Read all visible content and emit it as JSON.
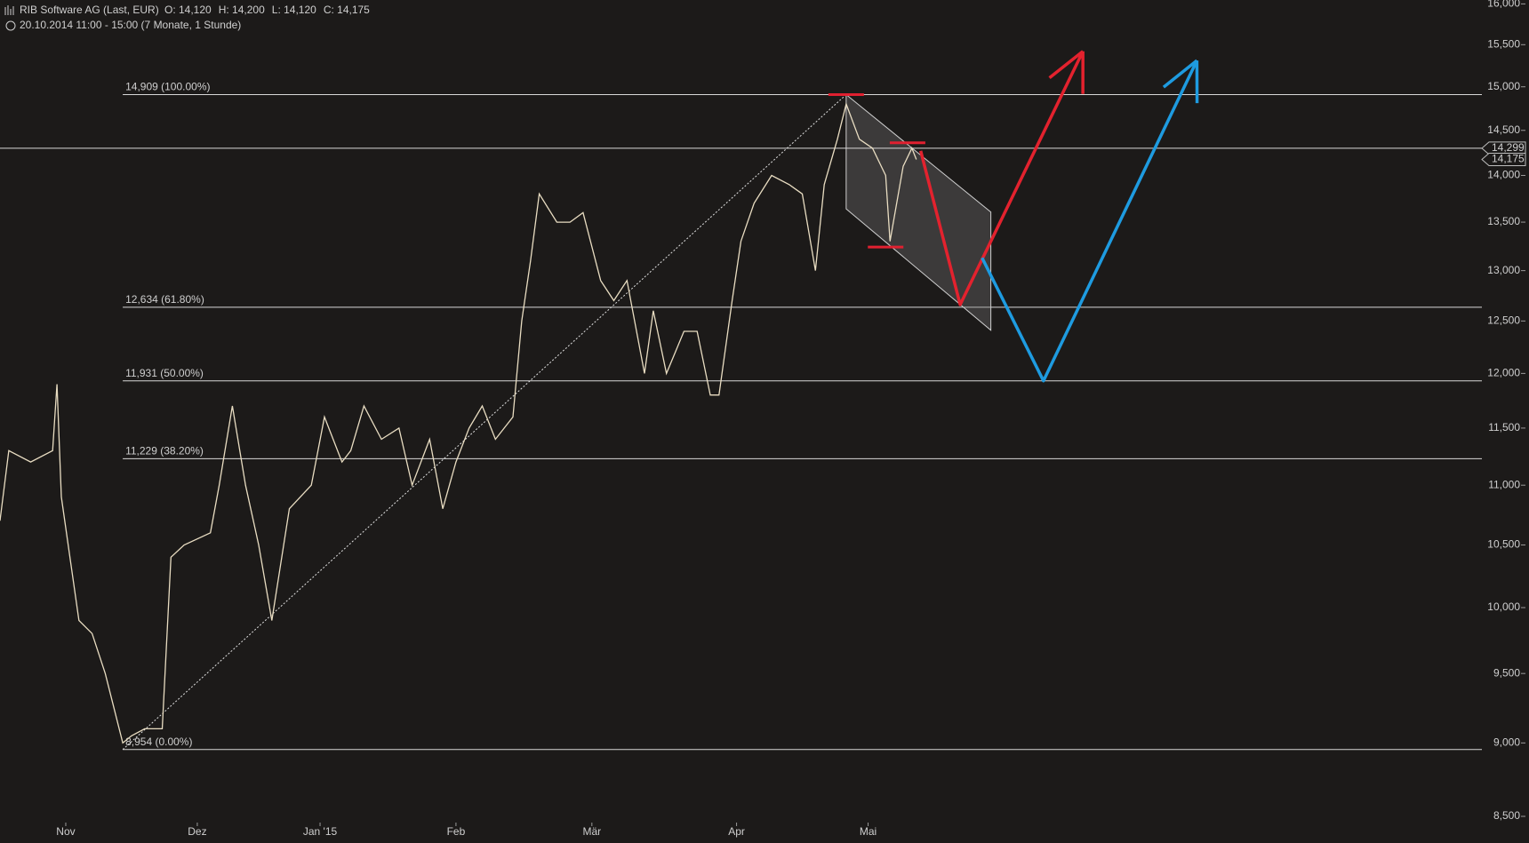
{
  "chart_data": {
    "type": "line",
    "title": "RIB Software AG (Last, EUR)",
    "ohlc": [
      "O: 14,120",
      "H: 14,200",
      "L: 14,120",
      "C: 14,175"
    ],
    "subtitle": "20.10.2014 11:00 - 15:00 (7 Monate, 1 Stunde)",
    "color": "#e9ddc2",
    "log_scale": true,
    "xlim": [
      0,
      338
    ],
    "xticks": [
      {
        "value": 15,
        "label": "Nov"
      },
      {
        "value": 45,
        "label": "Dez"
      },
      {
        "value": 73,
        "label": "Jan '15"
      },
      {
        "value": 104,
        "label": "Feb"
      },
      {
        "value": 135,
        "label": "Mär"
      },
      {
        "value": 168,
        "label": "Apr"
      },
      {
        "value": 198,
        "label": "Mai"
      }
    ],
    "ylim": [
      8500,
      16000
    ],
    "yticks": [
      {
        "value": 8500,
        "label": "8,500"
      },
      {
        "value": 9000,
        "label": "9,000"
      },
      {
        "value": 9500,
        "label": "9,500"
      },
      {
        "value": 10000,
        "label": "10,000"
      },
      {
        "value": 10500,
        "label": "10,500"
      },
      {
        "value": 11000,
        "label": "11,000"
      },
      {
        "value": 11500,
        "label": "11,500"
      },
      {
        "value": 12000,
        "label": "12,000"
      },
      {
        "value": 12500,
        "label": "12,500"
      },
      {
        "value": 13000,
        "label": "13,000"
      },
      {
        "value": 13500,
        "label": "13,500"
      },
      {
        "value": 14000,
        "label": "14,000"
      },
      {
        "value": 14500,
        "label": "14,500"
      },
      {
        "value": 15000,
        "label": "15,000"
      },
      {
        "value": 15500,
        "label": "15,500"
      },
      {
        "value": 16000,
        "label": "16,000"
      }
    ],
    "x": [
      0,
      2,
      7,
      12,
      13,
      14,
      18,
      21,
      24,
      28,
      30,
      33,
      37,
      39,
      42,
      48,
      50,
      53,
      56,
      59,
      62,
      66,
      71,
      74,
      78,
      80,
      83,
      87,
      91,
      94,
      98,
      101,
      104,
      107,
      110,
      113,
      117,
      119,
      121,
      123,
      127,
      130,
      133,
      137,
      140,
      143,
      147,
      149,
      152,
      156,
      159,
      162,
      164,
      167,
      169,
      172,
      176,
      180,
      183,
      186,
      188,
      191,
      193,
      196,
      199,
      202,
      203,
      206,
      208,
      209
    ],
    "values": [
      10700,
      11300,
      11200,
      11300,
      11900,
      10900,
      9900,
      9800,
      9500,
      9000,
      9050,
      9100,
      9100,
      10400,
      10500,
      10600,
      11000,
      11700,
      11000,
      10500,
      9900,
      10800,
      11000,
      11600,
      11200,
      11300,
      11700,
      11400,
      11500,
      11000,
      11400,
      10800,
      11200,
      11500,
      11700,
      11400,
      11600,
      12500,
      13100,
      13800,
      13500,
      13500,
      13600,
      12900,
      12700,
      12900,
      12000,
      12600,
      12000,
      12400,
      12400,
      11800,
      11800,
      12700,
      13300,
      13700,
      14000,
      13900,
      13800,
      13000,
      13900,
      14400,
      14800,
      14400,
      14300,
      14000,
      13300,
      14100,
      14300,
      14175
    ],
    "levels": [
      {
        "value": 14909,
        "label": "14,909 (100.00%)"
      },
      {
        "value": 12634,
        "label": "12,634 (61.80%)"
      },
      {
        "value": 11931,
        "label": "11,931 (50.00%)"
      },
      {
        "value": 11229,
        "label": "11,229 (38.20%)"
      },
      {
        "value": 8954,
        "label": "8,954 (0.00%)"
      }
    ],
    "level_start": 28,
    "price_lines": [
      {
        "value": 14299,
        "label": "14,299"
      },
      {
        "value": 14175,
        "label": "14,175"
      }
    ],
    "trendline": {
      "x": [
        28,
        193
      ],
      "values": [
        8954,
        14909
      ]
    },
    "channel": {
      "x": [
        193,
        226,
        226,
        193
      ],
      "values": [
        14909,
        13606,
        12410,
        13640
      ]
    },
    "markers": {
      "x": [
        193,
        207,
        202
      ],
      "values": [
        14909,
        14360,
        13240
      ],
      "color": "#e02030"
    },
    "projections": [
      {
        "color": "#e3222e",
        "x": [
          210,
          219,
          247
        ],
        "values": [
          14270,
          12660,
          15420
        ]
      },
      {
        "color": "#1e9be0",
        "x": [
          224,
          238,
          273
        ],
        "values": [
          13130,
          11931,
          15310
        ]
      }
    ]
  }
}
